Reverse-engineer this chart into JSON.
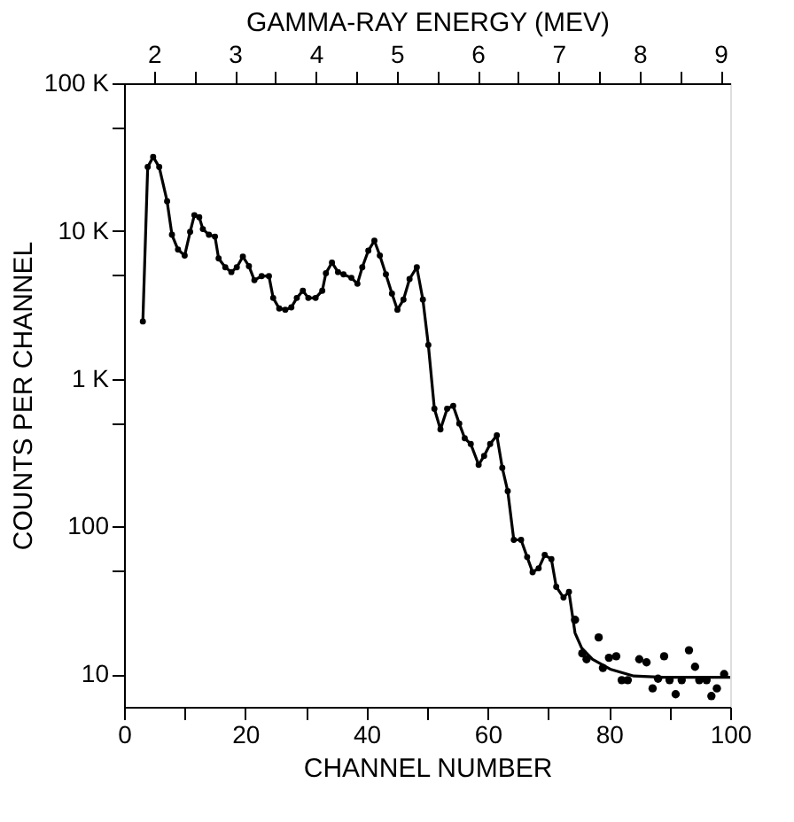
{
  "chart_data": {
    "type": "line",
    "xlabel": "CHANNEL NUMBER",
    "ylabel": "COUNTS PER CHANNEL",
    "x2label": "GAMMA-RAY ENERGY (MEV)",
    "xlim": [
      0,
      100
    ],
    "xticks": [
      0,
      {
        "value": 10,
        "label": null
      },
      20,
      {
        "value": 30,
        "label": null
      },
      40,
      {
        "value": 50,
        "label": null
      },
      60,
      {
        "value": 70,
        "label": null
      },
      80,
      {
        "value": 90,
        "label": null
      },
      100
    ],
    "x2lim": [
      1.63,
      9.12
    ],
    "x2ticks": [
      2,
      {
        "value": 2.5,
        "label": null
      },
      3,
      {
        "value": 3.5,
        "label": null
      },
      4,
      {
        "value": 4.5,
        "label": null
      },
      5,
      {
        "value": 5.5,
        "label": null
      },
      6,
      {
        "value": 6.5,
        "label": null
      },
      7,
      {
        "value": 7.5,
        "label": null
      },
      8,
      {
        "value": 8.5,
        "label": null
      },
      9
    ],
    "ylim": [
      6,
      100000
    ],
    "log": true,
    "yticks": [
      {
        "value": 10,
        "label": "10"
      },
      {
        "value": 50,
        "label": null
      },
      {
        "value": 100,
        "label": "100"
      },
      {
        "value": 500,
        "label": null
      },
      {
        "value": 1000,
        "label": "1 K"
      },
      {
        "value": 5000,
        "label": null
      },
      {
        "value": 10000,
        "label": "10 K"
      },
      {
        "value": 50000,
        "label": null
      },
      {
        "value": 100000,
        "label": "100 K"
      }
    ],
    "grid": false,
    "series": [
      {
        "type": "line",
        "marker": "circle",
        "color": "#000000",
        "x": [
          3.1,
          3.9,
          4.8,
          5.8,
          7.1,
          7.9,
          8.9,
          10.0,
          10.9,
          11.6,
          12.4,
          13.0,
          14.0,
          15.0,
          15.6,
          16.7,
          17.7,
          18.6,
          19.6,
          20.6,
          21.5,
          22.7,
          23.9,
          24.6,
          25.6,
          26.6,
          27.6,
          28.5,
          29.5,
          30.4,
          31.6,
          32.7,
          33.3,
          34.3,
          35.3,
          36.2,
          37.5,
          38.5,
          39.3,
          40.3,
          41.3,
          42.2,
          43.2,
          44.2,
          45.1,
          46.1,
          47.1,
          48.3,
          49.3,
          50.2,
          51.2,
          52.2,
          53.3,
          54.3,
          55.3,
          56.2,
          57.2,
          58.5,
          59.4,
          60.4,
          61.5,
          62.4,
          63.3,
          64.3,
          65.5,
          66.5,
          67.4,
          68.4,
          69.4,
          70.5,
          71.3,
          72.5,
          73.4
        ],
        "values": [
          2440,
          27100,
          31700,
          27100,
          15900,
          9420,
          7480,
          6820,
          9860,
          12800,
          12400,
          10300,
          9420,
          9160,
          6520,
          5680,
          5270,
          5680,
          6700,
          5780,
          4640,
          4950,
          4950,
          3520,
          2990,
          2930,
          3040,
          3520,
          3940,
          3520,
          3520,
          3940,
          5180,
          6110,
          5270,
          5080,
          4820,
          4390,
          5680,
          7350,
          8590,
          6820,
          5080,
          3760,
          2930,
          3430,
          4730,
          5680,
          3430,
          1690,
          625,
          454,
          625,
          655,
          497,
          395,
          361,
          261,
          300,
          361,
          413,
          249,
          173,
          81,
          81,
          62,
          49,
          52,
          64,
          60,
          39,
          33,
          36
        ]
      },
      {
        "type": "line",
        "marker": "none",
        "color": "#000000",
        "x": [
          73.4,
          74.4,
          75.5,
          77.3,
          80.2,
          84.1,
          88.9,
          100
        ],
        "values": [
          36,
          19,
          15,
          12.6,
          10.8,
          9.7,
          9.5,
          9.5
        ]
      },
      {
        "type": "scatter",
        "marker": "circle",
        "color": "#000000",
        "x": [
          74.4,
          75.6,
          76.3,
          78.3,
          79.0,
          80.0,
          81.2,
          82.1,
          83.1,
          85.0,
          86.2,
          87.2,
          88.1,
          89.1,
          90.0,
          91.0,
          92.0,
          93.2,
          94.2,
          94.9,
          96.1,
          96.9,
          97.8,
          99.0
        ],
        "values": [
          23.3,
          13.8,
          12.6,
          17.7,
          11.0,
          12.9,
          13.2,
          9.1,
          9.1,
          12.6,
          12.0,
          8.0,
          9.3,
          13.2,
          9.1,
          7.3,
          9.1,
          14.5,
          11.2,
          9.1,
          9.1,
          7.1,
          8.0,
          10.0
        ]
      }
    ]
  }
}
